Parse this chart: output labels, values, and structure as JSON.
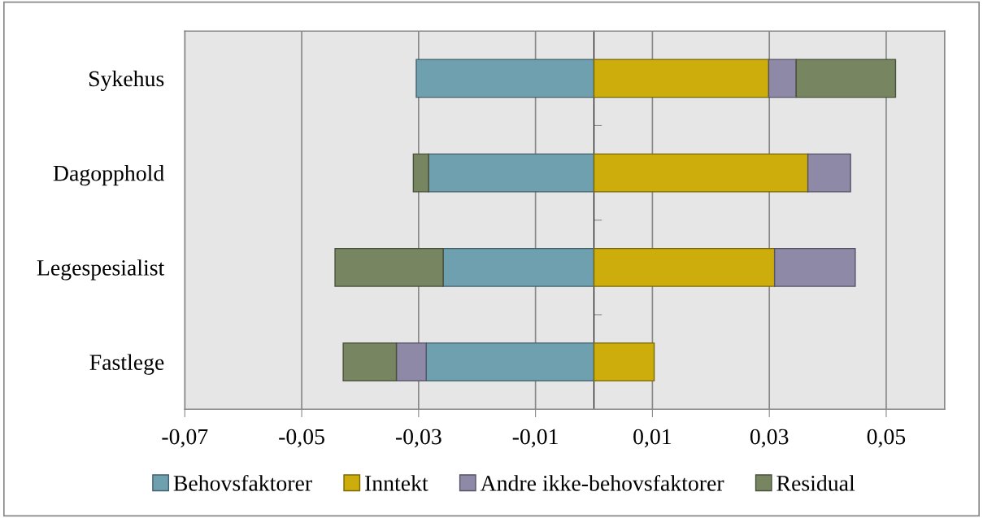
{
  "chart_data": {
    "type": "bar",
    "orientation": "horizontal",
    "stacked": true,
    "categories": [
      "Sykehus",
      "Dagopphold",
      "Legespesialist",
      "Fastlege"
    ],
    "series": [
      {
        "name": "Behovsfaktorer",
        "color": "#6fa0b0",
        "values": [
          -0.0304,
          -0.0283,
          -0.0258,
          -0.0287
        ]
      },
      {
        "name": "Inntekt",
        "color": "#ccad0c",
        "values": [
          0.0299,
          0.0366,
          0.0309,
          0.0103
        ]
      },
      {
        "name": "Andre ikke-behovsfaktorer",
        "color": "#8e89a6",
        "values": [
          0.0047,
          0.0073,
          0.0138,
          -0.0051
        ]
      },
      {
        "name": "Residual",
        "color": "#778560",
        "values": [
          0.017,
          -0.0026,
          -0.0185,
          -0.0091
        ]
      }
    ],
    "xlim": [
      -0.07,
      0.06
    ],
    "xticks": [
      {
        "value": -0.07,
        "label": "-0,07"
      },
      {
        "value": -0.05,
        "label": "-0,05"
      },
      {
        "value": -0.03,
        "label": "-0,03"
      },
      {
        "value": -0.01,
        "label": "-0,01"
      },
      {
        "value": 0.01,
        "label": "0,01"
      },
      {
        "value": 0.03,
        "label": "0,03"
      },
      {
        "value": 0.05,
        "label": "0,05"
      }
    ],
    "grid": "x",
    "legend": "bottom"
  }
}
